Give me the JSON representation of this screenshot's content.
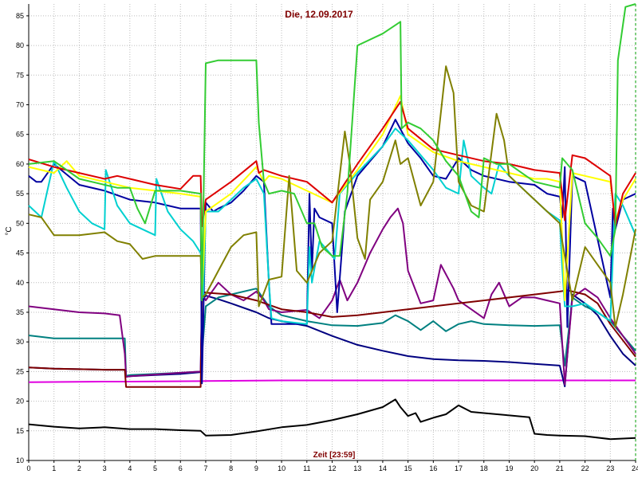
{
  "chart_data": {
    "type": "line",
    "title": "Die, 12.09.2017",
    "xlabel": "Zeit [23:59]",
    "ylabel": "°C",
    "xlim": [
      0,
      24
    ],
    "ylim": [
      10,
      87
    ],
    "x_ticks": [
      0,
      1,
      2,
      3,
      4,
      5,
      6,
      7,
      8,
      9,
      10,
      11,
      12,
      13,
      14,
      15,
      16,
      17,
      18,
      19,
      20,
      21,
      22,
      23,
      24
    ],
    "y_ticks": [
      10,
      15,
      20,
      25,
      30,
      35,
      40,
      45,
      50,
      55,
      60,
      65,
      70,
      75,
      80,
      85
    ],
    "grid": true,
    "series": [
      {
        "color": "#000000",
        "x": [
          0,
          1,
          2,
          3,
          4,
          5,
          6,
          6.8,
          7,
          8,
          9,
          10,
          11,
          12,
          13,
          14,
          14.5,
          14.7,
          15,
          15.3,
          15.5,
          16,
          16.5,
          17,
          17.5,
          18,
          19,
          19.8,
          20,
          20.5,
          21,
          22,
          23,
          24
        ],
        "y": [
          16.1,
          15.7,
          15.4,
          15.6,
          15.3,
          15.3,
          15.1,
          15.0,
          14.2,
          14.3,
          14.9,
          15.6,
          16.0,
          16.8,
          17.8,
          19.0,
          20.3,
          19.0,
          17.5,
          18.0,
          16.5,
          17.2,
          17.8,
          19.3,
          18.2,
          18.0,
          17.6,
          17.3,
          14.5,
          14.3,
          14.2,
          14.1,
          13.6,
          13.8
        ]
      },
      {
        "color": "#e000e0",
        "x": [
          0,
          3,
          4,
          7,
          10,
          15,
          20,
          24
        ],
        "y": [
          23.2,
          23.3,
          23.3,
          23.4,
          23.5,
          23.5,
          23.5,
          23.5
        ]
      },
      {
        "color": "#000080",
        "x": [
          0,
          1,
          2,
          3,
          3.8,
          3.85,
          4,
          5,
          6,
          6.8,
          6.85,
          7,
          7.5,
          8,
          9,
          9.5,
          10,
          11,
          12,
          13,
          14,
          15,
          16,
          17,
          18,
          19,
          20,
          21,
          21.2,
          21.5,
          22,
          22.5,
          23,
          23.5,
          24
        ],
        "y": [
          25.7,
          25.5,
          25.4,
          25.3,
          25.3,
          24.2,
          24.2,
          24.4,
          24.6,
          24.9,
          37.0,
          37.8,
          37.2,
          36.5,
          35.0,
          34.0,
          33.5,
          32.7,
          31.0,
          29.5,
          28.5,
          27.6,
          27.1,
          26.9,
          26.8,
          26.6,
          26.3,
          26.0,
          22.5,
          38.0,
          36.5,
          34.5,
          31.0,
          28.0,
          26.0
        ]
      },
      {
        "color": "#008080",
        "x": [
          0,
          1,
          2,
          3,
          3.8,
          3.85,
          4,
          5,
          6,
          6.8,
          7,
          7.5,
          8,
          9,
          9.5,
          10,
          11,
          12,
          13,
          14,
          14.5,
          15,
          15.5,
          16,
          16.5,
          17,
          17.5,
          18,
          19,
          20,
          21,
          21.2,
          21.5,
          22,
          22.5,
          23,
          23.5,
          24
        ],
        "y": [
          31.1,
          30.6,
          30.6,
          30.6,
          30.6,
          24.3,
          24.4,
          24.6,
          24.8,
          25.0,
          36.0,
          37.5,
          38.0,
          39.0,
          36.0,
          34.5,
          33.5,
          32.8,
          32.7,
          33.2,
          34.5,
          33.5,
          32.0,
          33.5,
          31.8,
          33.0,
          33.5,
          33.0,
          32.8,
          32.7,
          32.8,
          26.0,
          37.5,
          36.0,
          35.0,
          33.5,
          31.0,
          28.5
        ]
      },
      {
        "color": "#800080",
        "x": [
          0,
          1,
          2,
          3,
          3.6,
          3.8,
          3.85,
          4,
          5,
          6,
          6.8,
          6.85,
          7,
          7.5,
          8,
          8.5,
          9,
          9.3,
          9.5,
          10,
          11,
          11.5,
          12,
          12.3,
          12.6,
          13,
          13.5,
          14,
          14.3,
          14.6,
          14.8,
          15,
          15.5,
          16,
          16.3,
          16.8,
          17,
          17.5,
          18,
          18.3,
          18.6,
          19,
          19.5,
          20,
          20.5,
          21,
          21.2,
          21.5,
          22,
          22.5,
          23,
          24
        ],
        "y": [
          36.0,
          35.5,
          35.0,
          34.8,
          34.5,
          28.0,
          24.1,
          24.2,
          24.5,
          24.8,
          25.0,
          38.0,
          37.0,
          40.0,
          38.0,
          37.0,
          38.5,
          37.0,
          35.5,
          35.0,
          35.4,
          34.0,
          37.0,
          40.5,
          37.0,
          40.0,
          45.0,
          49.0,
          51.0,
          52.5,
          50.0,
          42.0,
          36.5,
          37.0,
          43.0,
          39.0,
          37.0,
          35.5,
          34.0,
          38.0,
          40.0,
          36.0,
          37.5,
          37.5,
          37.0,
          36.5,
          22.8,
          37.5,
          39.0,
          37.5,
          34.0,
          28.0
        ]
      },
      {
        "color": "#800000",
        "x": [
          0,
          1,
          2,
          3,
          3.8,
          3.85,
          4,
          5,
          6,
          6.8,
          6.85,
          7,
          8,
          9,
          10,
          11,
          12,
          13,
          14,
          15,
          16,
          17,
          18,
          19,
          20,
          21,
          21.3,
          22,
          22.5,
          23,
          24
        ],
        "y": [
          25.7,
          25.5,
          25.4,
          25.3,
          25.3,
          22.4,
          22.4,
          22.4,
          22.4,
          22.4,
          38.5,
          38.3,
          38.0,
          37.0,
          35.5,
          35.0,
          34.2,
          34.5,
          35.0,
          35.5,
          36.0,
          36.5,
          37.0,
          37.5,
          38.0,
          38.5,
          38.7,
          38.0,
          36.5,
          33.0,
          27.5
        ]
      },
      {
        "color": "#0000a0",
        "x": [
          0,
          0.3,
          0.5,
          1,
          2,
          3,
          4,
          5,
          5.5,
          6,
          6.5,
          6.8,
          6.85,
          7,
          7.3,
          7.5,
          8,
          8.5,
          9,
          9.3,
          9.5,
          9.6,
          10,
          11,
          11.1,
          11.2,
          11.3,
          11.5,
          12,
          12.2,
          12.5,
          13,
          14,
          14.5,
          15,
          15.5,
          16,
          16.5,
          17,
          17.5,
          18,
          19,
          20,
          20.5,
          21,
          21.1,
          21.2,
          21.3,
          21.5,
          22,
          23,
          23.1,
          23.2,
          23.5,
          24
        ],
        "y": [
          58.0,
          57.0,
          57.0,
          60.0,
          56.5,
          55.5,
          54.0,
          53.5,
          53.0,
          52.5,
          52.5,
          52.5,
          23.0,
          53.5,
          52.0,
          52.5,
          53.5,
          55.5,
          58.0,
          57.0,
          40.0,
          33.0,
          33.0,
          33.0,
          55.0,
          42.0,
          52.5,
          51.0,
          50.0,
          35.0,
          52.0,
          58.0,
          63.0,
          67.5,
          63.5,
          61.0,
          58.0,
          57.5,
          61.0,
          59.0,
          58.0,
          57.0,
          56.5,
          55.0,
          54.5,
          51.0,
          59.5,
          32.5,
          58.0,
          57.0,
          37.5,
          52.5,
          49.0,
          54.0,
          55.0
        ]
      },
      {
        "color": "#00d0d0",
        "x": [
          0,
          0.5,
          1,
          1.5,
          2,
          2.5,
          3,
          3.05,
          3.5,
          4,
          4.5,
          5,
          5.05,
          5.5,
          6,
          6.5,
          6.8,
          6.9,
          7,
          7.5,
          8,
          8.5,
          9,
          9.3,
          9.5,
          9.6,
          10,
          11,
          11.1,
          11.2,
          11.5,
          12,
          12.1,
          12.3,
          13,
          14,
          14.5,
          15,
          15.5,
          16,
          16.5,
          17,
          17.2,
          17.5,
          18,
          18.3,
          18.6,
          19,
          19.5,
          20,
          20.5,
          21,
          21.1,
          21.2,
          21.5,
          22,
          22.5,
          23,
          23.2,
          23.5,
          24
        ],
        "y": [
          53.0,
          51.0,
          60.5,
          56.0,
          52.0,
          50.0,
          49.0,
          59.0,
          53.0,
          50.0,
          49.0,
          48.0,
          57.5,
          52.0,
          49.0,
          47.0,
          45.0,
          37.5,
          52.0,
          52.0,
          54.0,
          56.0,
          57.5,
          55.0,
          40.0,
          34.0,
          33.5,
          33.0,
          46.0,
          40.0,
          47.0,
          44.5,
          44.0,
          55.0,
          58.5,
          63.0,
          66.0,
          64.0,
          61.5,
          59.0,
          56.0,
          55.0,
          64.0,
          58.0,
          56.0,
          55.0,
          60.0,
          58.0,
          56.0,
          54.0,
          52.0,
          50.5,
          42.5,
          36.0,
          36.0,
          36.5,
          35.0,
          33.5,
          55.0,
          53.0,
          48.0
        ]
      },
      {
        "color": "#ffff00",
        "x": [
          0,
          1,
          1.5,
          2,
          3,
          4,
          5,
          6,
          6.8,
          6.85,
          7,
          8,
          9,
          9.3,
          9.5,
          10,
          11,
          12,
          13,
          14,
          14.7,
          15,
          16,
          17,
          18,
          19,
          20,
          20.5,
          21,
          21.2,
          21.5,
          22,
          23,
          23.2,
          23.5,
          24
        ],
        "y": [
          59.5,
          58.5,
          60.5,
          58.0,
          57.0,
          56.0,
          55.5,
          55.0,
          54.5,
          38.0,
          52.0,
          55.0,
          59.5,
          57.0,
          58.0,
          57.5,
          55.5,
          53.5,
          59.0,
          65.0,
          71.5,
          65.0,
          62.0,
          60.5,
          59.5,
          58.5,
          57.5,
          57.5,
          57.0,
          37.0,
          58.5,
          58.0,
          57.0,
          50.5,
          54.0,
          57.5
        ]
      },
      {
        "color": "#dd0000",
        "x": [
          0,
          1,
          2,
          3,
          3.5,
          4,
          5,
          6,
          6.5,
          6.8,
          6.85,
          7,
          8,
          9,
          9.1,
          9.3,
          10,
          11,
          12,
          13,
          14,
          14.7,
          15,
          16,
          17,
          18,
          19,
          20,
          21,
          21.2,
          21.5,
          22,
          23,
          23.2,
          23.5,
          24
        ],
        "y": [
          60.8,
          59.5,
          58.5,
          57.5,
          58.0,
          57.5,
          56.5,
          55.8,
          58.0,
          58.0,
          49.5,
          54.0,
          57.0,
          60.5,
          58.5,
          59.0,
          58.0,
          57.0,
          53.5,
          60.0,
          66.0,
          70.5,
          66.0,
          62.5,
          61.5,
          60.5,
          60.0,
          59.0,
          58.5,
          50.5,
          61.5,
          61.0,
          58.0,
          49.5,
          55.0,
          58.5
        ]
      },
      {
        "color": "#808000",
        "x": [
          0,
          0.5,
          1,
          2,
          3,
          3.5,
          4,
          4.5,
          5,
          6,
          6.8,
          6.85,
          7,
          7.5,
          8,
          8.5,
          9,
          9.1,
          9.5,
          10,
          10.3,
          10.6,
          11,
          11.5,
          12,
          12.5,
          12.7,
          13,
          13.3,
          13.5,
          14,
          14.5,
          14.7,
          15,
          15.5,
          16,
          16.5,
          16.8,
          17,
          17.5,
          18,
          18.5,
          18.8,
          19,
          19.5,
          20,
          21,
          21.1,
          21.5,
          22,
          22.5,
          23,
          23.2,
          23.5,
          24
        ],
        "y": [
          51.5,
          51.0,
          48.0,
          48.0,
          48.5,
          47.0,
          46.5,
          44.0,
          44.5,
          44.5,
          44.5,
          37.5,
          38.0,
          42.0,
          46.0,
          48.0,
          48.5,
          36.0,
          40.5,
          41.0,
          58.0,
          42.0,
          40.0,
          45.0,
          47.0,
          65.5,
          60.0,
          47.5,
          44.0,
          54.0,
          57.0,
          64.0,
          60.0,
          61.0,
          53.0,
          57.0,
          76.5,
          72.0,
          57.0,
          53.0,
          52.0,
          68.5,
          64.0,
          58.0,
          56.0,
          54.0,
          50.0,
          47.0,
          37.0,
          46.0,
          43.0,
          40.0,
          32.5,
          38.0,
          49.0
        ]
      },
      {
        "color": "#33cc33",
        "x": [
          0,
          1,
          2,
          3,
          3.5,
          4,
          4.3,
          4.6,
          5,
          6,
          6.8,
          6.85,
          7,
          7.5,
          8,
          9,
          9.1,
          9.3,
          9.5,
          10,
          10.5,
          11,
          11.3,
          11.6,
          12,
          12.3,
          12.6,
          13,
          14,
          14.7,
          14.75,
          15,
          15.5,
          16,
          16.5,
          17,
          17.5,
          17.8,
          18,
          18.5,
          19,
          19.5,
          20,
          21,
          21.1,
          21.5,
          22,
          22.5,
          23,
          23.2,
          23.3,
          23.6,
          24
        ],
        "y": [
          60.0,
          60.5,
          57.5,
          56.5,
          56.0,
          56.0,
          52.5,
          50.0,
          55.5,
          55.5,
          55.0,
          37.0,
          77.0,
          77.5,
          77.5,
          77.5,
          67.0,
          57.0,
          55.0,
          55.5,
          55.0,
          50.0,
          50.0,
          46.0,
          44.5,
          44.5,
          55.0,
          80.0,
          82.0,
          84.0,
          66.0,
          67.0,
          66.0,
          64.0,
          60.5,
          58.0,
          52.0,
          51.0,
          61.0,
          60.0,
          60.0,
          58.5,
          57.0,
          56.0,
          61.0,
          59.0,
          50.0,
          47.5,
          44.5,
          49.0,
          77.5,
          86.5,
          87.0
        ]
      }
    ]
  }
}
